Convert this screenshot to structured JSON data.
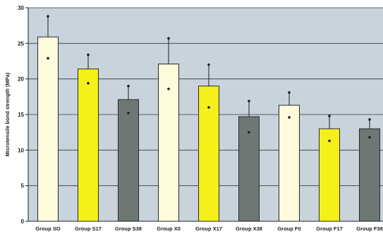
{
  "chart_data": {
    "type": "bar",
    "title": "",
    "xlabel": "",
    "ylabel": "Microtensile bond strength (MPa)",
    "ylim": [
      0,
      30
    ],
    "yticks": [
      0,
      5,
      10,
      15,
      20,
      25,
      30
    ],
    "grid": true,
    "legend": "none",
    "categories": [
      "Group SO",
      "Group S17",
      "Group S38",
      "Group X0",
      "Group X17",
      "Group X38",
      "Group F0",
      "Group F17",
      "Group F38"
    ],
    "values": [
      25.9,
      21.4,
      17.1,
      22.1,
      19.0,
      14.7,
      16.3,
      13.0,
      13.0
    ],
    "error_upper": [
      28.8,
      23.4,
      19.0,
      25.7,
      22.0,
      16.9,
      18.1,
      14.8,
      14.3
    ],
    "error_lower": [
      22.9,
      19.4,
      15.2,
      18.6,
      16.0,
      12.5,
      14.6,
      11.3,
      11.8
    ],
    "bar_colors": [
      "#fdfbdc",
      "#f4f019",
      "#6f7774",
      "#fdfbdc",
      "#f4f019",
      "#6f7774",
      "#fdfbdc",
      "#f4f019",
      "#6f7774"
    ],
    "plot_background": "#c9d3dc"
  }
}
